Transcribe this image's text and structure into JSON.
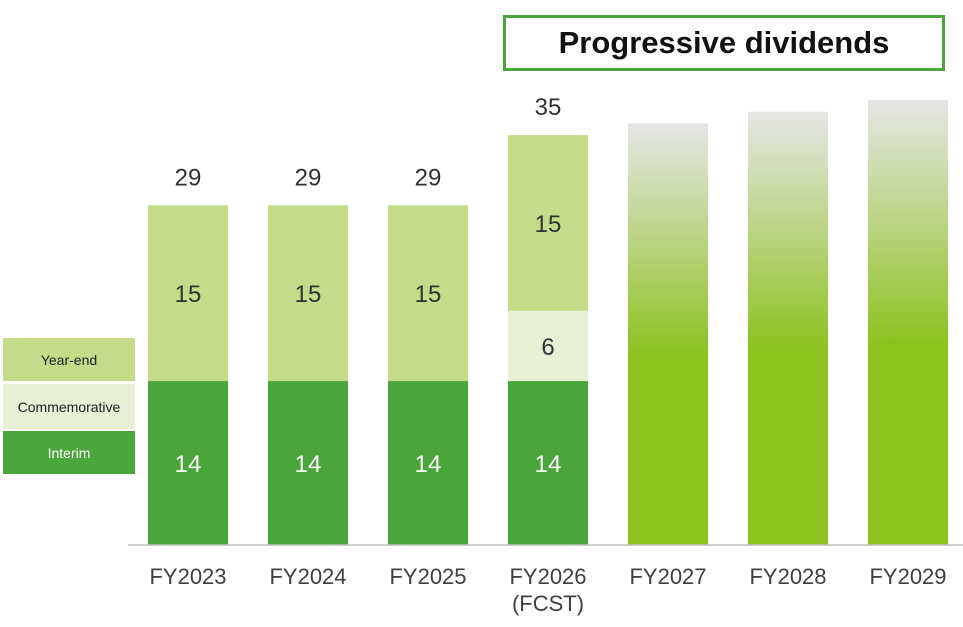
{
  "banner": {
    "text": "Progressive dividends"
  },
  "legend": [
    {
      "label": "Year-end",
      "color": "#c2dc8a",
      "text_color": "#222222"
    },
    {
      "label": "Commemorative",
      "color": "#e8f1d6",
      "text_color": "#222222"
    },
    {
      "label": "Interim",
      "color": "#4aa53b",
      "text_color": "#ffffff"
    }
  ],
  "chart_data": {
    "type": "bar",
    "stacked": true,
    "categories": [
      "FY2023",
      "FY2024",
      "FY2025",
      "FY2026\n(FCST)",
      "FY2027",
      "FY2028",
      "FY2029"
    ],
    "series": [
      {
        "name": "Interim",
        "values": [
          14,
          14,
          14,
          14,
          null,
          null,
          null
        ],
        "color": "#4aa53b",
        "label_color": "#ffffff"
      },
      {
        "name": "Commemorative",
        "values": [
          null,
          null,
          null,
          6,
          null,
          null,
          null
        ],
        "color": "#e8f1d6",
        "label_color": "#333333"
      },
      {
        "name": "Year-end",
        "values": [
          15,
          15,
          15,
          15,
          null,
          null,
          null
        ],
        "color": "#c2dc8a",
        "label_color": "#333333"
      }
    ],
    "totals": [
      29,
      29,
      29,
      35,
      null,
      null,
      null
    ],
    "projected_values": [
      null,
      null,
      null,
      null,
      36,
      37,
      38
    ],
    "projected_colors": {
      "top": "#e6e6e6",
      "bottom": "#8dc21f"
    },
    "ylim": [
      0,
      38
    ],
    "grid": false
  }
}
